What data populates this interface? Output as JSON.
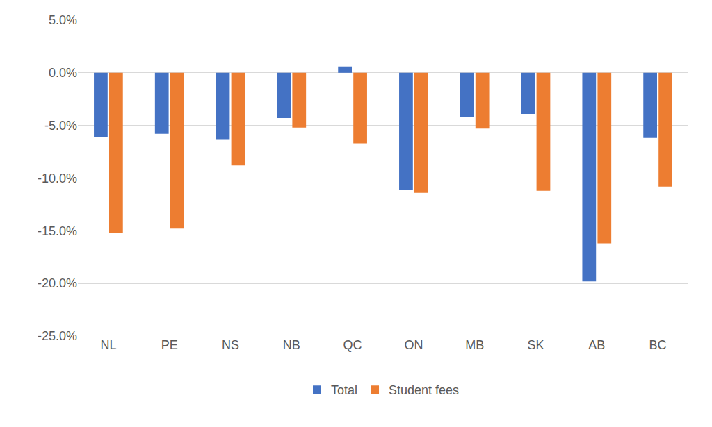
{
  "chart_data": {
    "type": "bar",
    "categories": [
      "NL",
      "PE",
      "NS",
      "NB",
      "QC",
      "ON",
      "MB",
      "SK",
      "AB",
      "BC"
    ],
    "series": [
      {
        "name": "Total",
        "color": "#4472c4",
        "values": [
          -6.1,
          -5.8,
          -6.3,
          -4.3,
          0.6,
          -11.1,
          -4.2,
          -3.9,
          -19.8,
          -6.2
        ]
      },
      {
        "name": "Student fees",
        "color": "#ed7d31",
        "values": [
          -15.2,
          -14.8,
          -8.8,
          -5.2,
          -6.7,
          -11.4,
          -5.3,
          -11.2,
          -16.2,
          -10.8
        ]
      }
    ],
    "ylim": [
      -25,
      5
    ],
    "yticks": [
      {
        "value": -25,
        "label": "-25.0%"
      },
      {
        "value": -20,
        "label": "-20.0%"
      },
      {
        "value": -15,
        "label": "-15.0%"
      },
      {
        "value": -10,
        "label": "-10.0%"
      },
      {
        "value": -5,
        "label": "-5.0%"
      },
      {
        "value": 0,
        "label": "0.0%"
      },
      {
        "value": 5,
        "label": "5.0%"
      }
    ],
    "grid": true,
    "legend": "bottom"
  }
}
